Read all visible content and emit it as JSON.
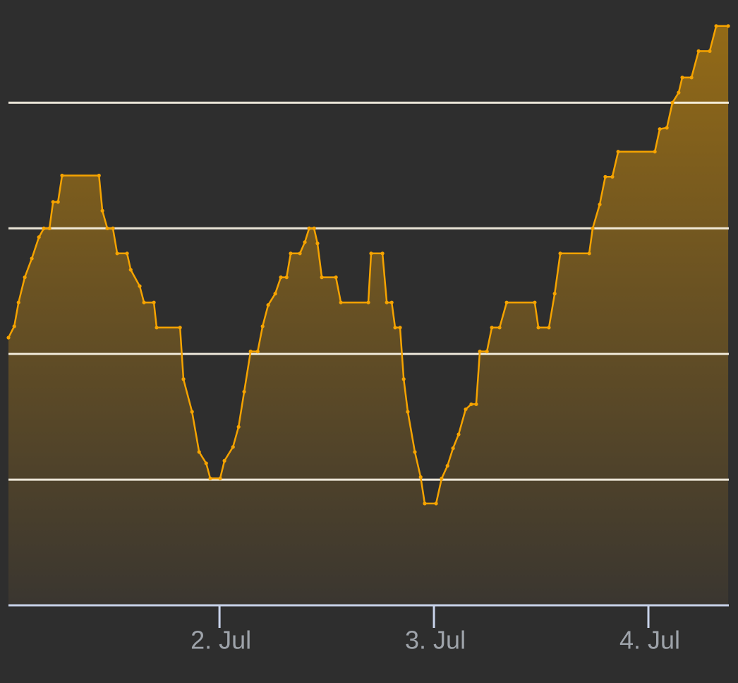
{
  "chart_data": {
    "type": "area",
    "x": [
      1.016,
      1.043,
      1.063,
      1.092,
      1.125,
      1.158,
      1.181,
      1.207,
      1.224,
      1.247,
      1.266,
      1.438,
      1.454,
      1.477,
      1.503,
      1.523,
      1.569,
      1.586,
      1.628,
      1.648,
      1.694,
      1.707,
      1.816,
      1.832,
      1.872,
      1.905,
      1.938,
      1.957,
      2.003,
      2.023,
      2.063,
      2.089,
      2.115,
      2.145,
      2.178,
      2.201,
      2.227,
      2.26,
      2.286,
      2.313,
      2.332,
      2.375,
      2.398,
      2.418,
      2.441,
      2.457,
      2.477,
      2.543,
      2.566,
      2.694,
      2.707,
      2.76,
      2.78,
      2.803,
      2.819,
      2.842,
      2.859,
      2.878,
      2.911,
      2.938,
      2.957,
      3.01,
      3.036,
      3.063,
      3.089,
      3.115,
      3.148,
      3.174,
      3.197,
      3.214,
      3.247,
      3.27,
      3.306,
      3.339,
      3.47,
      3.487,
      3.536,
      3.563,
      3.589,
      3.724,
      3.74,
      3.773,
      3.799,
      3.832,
      3.859,
      4.03,
      4.053,
      4.086,
      4.112,
      4.141,
      4.158,
      4.201,
      4.234,
      4.286,
      4.316,
      4.372
    ],
    "values": [
      2.13,
      2.22,
      2.41,
      2.61,
      2.76,
      2.93,
      3.0,
      3.0,
      3.21,
      3.21,
      3.42,
      3.42,
      3.14,
      3.0,
      3.0,
      2.8,
      2.8,
      2.67,
      2.54,
      2.41,
      2.41,
      2.21,
      2.21,
      1.8,
      1.54,
      1.22,
      1.13,
      1.01,
      1.01,
      1.15,
      1.26,
      1.42,
      1.7,
      2.02,
      2.02,
      2.22,
      2.39,
      2.48,
      2.61,
      2.61,
      2.8,
      2.8,
      2.89,
      3.0,
      3.0,
      2.88,
      2.61,
      2.61,
      2.41,
      2.41,
      2.8,
      2.8,
      2.41,
      2.41,
      2.21,
      2.21,
      1.8,
      1.54,
      1.22,
      1.02,
      0.81,
      0.81,
      1.01,
      1.11,
      1.25,
      1.36,
      1.56,
      1.6,
      1.6,
      2.02,
      2.02,
      2.21,
      2.21,
      2.41,
      2.41,
      2.21,
      2.21,
      2.48,
      2.8,
      2.8,
      3.0,
      3.19,
      3.41,
      3.41,
      3.61,
      3.61,
      3.79,
      3.8,
      4.0,
      4.08,
      4.2,
      4.2,
      4.41,
      4.41,
      4.61,
      4.61
    ],
    "color": "#f5a300",
    "xlim": [
      1.016,
      4.375
    ],
    "xticks": [
      {
        "value": 2,
        "label": "2. Jul"
      },
      {
        "value": 3,
        "label": "3. Jul"
      },
      {
        "value": 4,
        "label": "4. Jul"
      }
    ],
    "ylim": [
      0,
      4.8
    ],
    "yticks": [
      1,
      2,
      3,
      4
    ],
    "grid": true
  }
}
